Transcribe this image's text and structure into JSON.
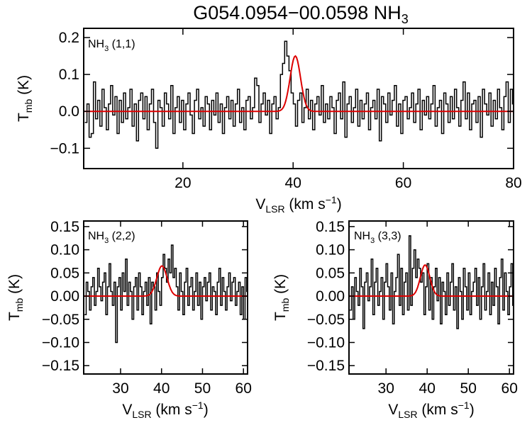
{
  "figure": {
    "title_main": "G054.0954−00.0598 NH",
    "title_sub": "3",
    "ylabel_main": "T",
    "ylabel_sub": "mb",
    "ylabel_unit": " (K)",
    "xlabel_main": "V",
    "xlabel_sub": "LSR",
    "xlabel_unit": " (km s",
    "xlabel_exp": "−1",
    "xlabel_close": ")"
  },
  "colors": {
    "spectrum": "#000000",
    "fit": "#dd0000",
    "axes": "#000000",
    "background": "#ffffff"
  },
  "chart_data": [
    {
      "type": "line",
      "panel": "NH3 (1,1)",
      "label_main": "NH",
      "label_sub": "3",
      "label_tail": " (1,1)",
      "xlim": [
        2,
        80
      ],
      "ylim": [
        -0.155,
        0.225
      ],
      "xticks": [
        20,
        40,
        60,
        80
      ],
      "xtick_labels": [
        "20",
        "40",
        "60",
        "80"
      ],
      "yticks": [
        0.2,
        0.1,
        0.0,
        -0.1
      ],
      "ytick_labels": [
        "0.2",
        "0.1",
        "0.0",
        "−0.1"
      ],
      "show_xlabel": true,
      "spectrum": {
        "x_start": 2.2,
        "x_step": 0.39,
        "values": [
          -0.03,
          0.02,
          -0.07,
          -0.06,
          0.08,
          -0.02,
          0.03,
          -0.04,
          0.06,
          0.01,
          -0.05,
          0.02,
          0.07,
          -0.01,
          0.04,
          -0.06,
          0.03,
          -0.03,
          0.05,
          -0.02,
          0.01,
          0.06,
          -0.04,
          0.02,
          -0.08,
          0.03,
          0.05,
          -0.02,
          0.04,
          -0.05,
          0.02,
          0.06,
          -0.03,
          -0.1,
          0.03,
          0.01,
          -0.04,
          0.05,
          0.02,
          -0.02,
          0.07,
          -0.06,
          0.01,
          0.04,
          -0.03,
          0.03,
          -0.05,
          0.02,
          0.05,
          -0.01,
          -0.06,
          0.03,
          0.06,
          -0.02,
          0.01,
          -0.04,
          0.04,
          0.02,
          -0.05,
          0.03,
          -0.01,
          0.05,
          -0.03,
          0.02,
          -0.06,
          0.01,
          0.04,
          -0.02,
          0.03,
          -0.04,
          0.02,
          0.06,
          -0.03,
          0.01,
          -0.05,
          0.03,
          0.04,
          -0.02,
          0.01,
          0.09,
          0.07,
          -0.03,
          0.02,
          0.05,
          -0.01,
          0.03,
          -0.06,
          0.02,
          0.04,
          -0.02,
          0.01,
          0.1,
          0.13,
          0.19,
          0.15,
          0.11,
          0.05,
          0.02,
          -0.04,
          0.03,
          0.05,
          -0.03,
          0.01,
          0.06,
          -0.02,
          0.03,
          -0.05,
          0.02,
          0.04,
          -0.01,
          0.07,
          -0.03,
          0.02,
          -0.02,
          0.04,
          0.01,
          -0.06,
          0.03,
          0.05,
          -0.02,
          0.08,
          -0.07,
          0.02,
          0.04,
          -0.03,
          0.01,
          0.06,
          -0.04,
          0.03,
          -0.02,
          0.02,
          0.05,
          -0.05,
          0.01,
          0.03,
          -0.02,
          0.06,
          -0.08,
          0.04,
          0.02,
          -0.03,
          0.05,
          -0.01,
          0.03,
          0.07,
          -0.04,
          0.02,
          -0.06,
          0.03,
          0.04,
          -0.02,
          0.01,
          0.05,
          -0.03,
          0.02,
          0.06,
          -0.05,
          0.03,
          -0.01,
          0.04,
          -0.02,
          0.02,
          0.07,
          -0.04,
          0.01,
          0.03,
          -0.06,
          0.05,
          0.02,
          -0.03,
          0.04,
          -0.02,
          0.06,
          0.01,
          -0.04,
          0.03,
          0.08,
          -0.02,
          0.05,
          -0.05,
          0.02,
          0.03,
          -0.03,
          0.04,
          -0.07,
          0.06,
          0.02,
          -0.01,
          0.05,
          -0.04,
          0.03,
          -0.02,
          0.06,
          0.01,
          -0.05,
          0.04,
          0.08,
          -0.03,
          0.06,
          0.02
        ]
      },
      "fit": {
        "amplitude": 0.15,
        "center": 40.4,
        "sigma": 0.95
      }
    },
    {
      "type": "line",
      "panel": "NH3 (2,2)",
      "label_main": "NH",
      "label_sub": "3",
      "label_tail": " (2,2)",
      "xlim": [
        21,
        61
      ],
      "ylim": [
        -0.168,
        0.162
      ],
      "xticks": [
        30,
        40,
        50,
        60
      ],
      "xtick_labels": [
        "30",
        "40",
        "50",
        "60"
      ],
      "yticks": [
        0.15,
        0.1,
        0.05,
        0.0,
        -0.05,
        -0.1,
        -0.15
      ],
      "ytick_labels": [
        "0.15",
        "0.10",
        "0.05",
        "0.00",
        "−0.05",
        "−0.10",
        "−0.15"
      ],
      "show_xlabel": true,
      "spectrum": {
        "x_start": 21.2,
        "x_step": 0.4,
        "values": [
          -0.04,
          0.03,
          0.01,
          -0.03,
          0.02,
          0.04,
          -0.02,
          0.01,
          0.06,
          0.02,
          -0.01,
          0.03,
          0.05,
          -0.04,
          0.02,
          0.07,
          0.01,
          -0.02,
          0.03,
          -0.1,
          0.02,
          0.04,
          -0.03,
          0.05,
          0.01,
          0.08,
          -0.02,
          0.03,
          0.01,
          -0.05,
          0.02,
          0.04,
          -0.03,
          0.05,
          0.02,
          -0.04,
          0.01,
          0.03,
          -0.02,
          0.04,
          -0.06,
          0.03,
          0.02,
          -0.03,
          0.05,
          0.01,
          -0.02,
          0.04,
          0.09,
          0.06,
          0.03,
          0.08,
          0.05,
          0.11,
          0.04,
          0.06,
          0.02,
          -0.03,
          0.05,
          0.01,
          -0.04,
          0.03,
          0.06,
          -0.02,
          0.02,
          0.04,
          -0.03,
          0.01,
          0.05,
          -0.02,
          0.03,
          -0.05,
          0.02,
          0.04,
          -0.01,
          0.03,
          0.05,
          -0.03,
          0.02,
          0.01,
          -0.04,
          0.03,
          0.06,
          -0.02,
          0.04,
          0.01,
          -0.03,
          0.02,
          0.05,
          -0.01,
          0.03,
          0.04,
          -0.02,
          0.01,
          0.03,
          -0.04,
          0.02,
          -0.05,
          0.04,
          0.01
        ]
      },
      "fit": {
        "amplitude": 0.065,
        "center": 40.1,
        "sigma": 1.25
      }
    },
    {
      "type": "line",
      "panel": "NH3 (3,3)",
      "label_main": "NH",
      "label_sub": "3",
      "label_tail": " (3,3)",
      "xlim": [
        21,
        61
      ],
      "ylim": [
        -0.168,
        0.162
      ],
      "xticks": [
        30,
        40,
        50,
        60
      ],
      "xtick_labels": [
        "30",
        "40",
        "50",
        "60"
      ],
      "yticks": [
        0.15,
        0.1,
        0.05,
        0.0,
        -0.05,
        -0.1,
        -0.15
      ],
      "ytick_labels": [
        "0.15",
        "0.10",
        "0.05",
        "0.00",
        "−0.05",
        "−0.10",
        "−0.15"
      ],
      "show_xlabel": true,
      "spectrum": {
        "x_start": 21.2,
        "x_step": 0.4,
        "values": [
          -0.03,
          0.02,
          -0.05,
          0.04,
          0.01,
          -0.02,
          0.06,
          0.02,
          -0.07,
          0.03,
          0.05,
          -0.01,
          0.02,
          0.08,
          -0.04,
          0.03,
          0.06,
          -0.02,
          0.01,
          0.04,
          -0.05,
          0.03,
          0.07,
          0.02,
          -0.03,
          0.05,
          -0.06,
          0.01,
          0.04,
          0.09,
          -0.02,
          0.06,
          -0.04,
          0.03,
          0.05,
          -0.03,
          0.13,
          -0.02,
          0.06,
          0.1,
          0.04,
          0.08,
          0.06,
          0.03,
          0.05,
          -0.04,
          0.02,
          0.07,
          -0.03,
          0.04,
          -0.05,
          0.02,
          0.06,
          -0.01,
          0.04,
          -0.06,
          0.03,
          0.01,
          -0.04,
          0.05,
          -0.02,
          0.03,
          0.07,
          -0.03,
          0.02,
          -0.07,
          0.04,
          0.01,
          -0.05,
          0.06,
          0.02,
          -0.03,
          0.05,
          -0.04,
          0.01,
          0.03,
          0.06,
          -0.02,
          0.04,
          -0.05,
          0.02,
          0.07,
          -0.03,
          0.01,
          0.05,
          -0.04,
          0.03,
          -0.02,
          0.06,
          0.02,
          -0.06,
          0.04,
          0.08,
          -0.03,
          0.05,
          0.01,
          -0.04,
          0.02,
          0.07,
          -0.02
        ]
      },
      "fit": {
        "amplitude": 0.067,
        "center": 39.5,
        "sigma": 1.15
      }
    }
  ]
}
